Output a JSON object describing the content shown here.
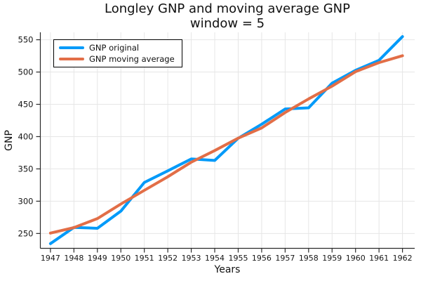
{
  "title": {
    "line1": "Longley GNP and moving average GNP",
    "line2": "window = 5"
  },
  "chart_data": {
    "type": "line",
    "title": "Longley GNP and moving average GNP",
    "subtitle": "window = 5",
    "xlabel": "Years",
    "ylabel": "GNP",
    "x": [
      1947,
      1948,
      1949,
      1950,
      1951,
      1952,
      1953,
      1954,
      1955,
      1956,
      1957,
      1958,
      1959,
      1960,
      1961,
      1962
    ],
    "xtick_labels": [
      "1947",
      "1948",
      "1949",
      "1950",
      "1951",
      "1952",
      "1953",
      "1954",
      "1955",
      "1956",
      "1957",
      "1958",
      "1959",
      "1960",
      "1961",
      "1962"
    ],
    "yticks": [
      250,
      300,
      350,
      400,
      450,
      500,
      550
    ],
    "xlim": [
      1946.57,
      1962.52
    ],
    "ylim": [
      227,
      561.5
    ],
    "grid": true,
    "legend_position": "top-left",
    "line_width": 4,
    "series": [
      {
        "name": "GNP original",
        "color": "#009AF9",
        "values": [
          234.289,
          259.426,
          258.054,
          284.599,
          328.975,
          346.999,
          365.385,
          363.112,
          397.469,
          419.18,
          442.769,
          444.546,
          482.704,
          502.601,
          518.173,
          554.894
        ]
      },
      {
        "name": "GNP moving average",
        "color": "#E26E47",
        "values": [
          250.59,
          259.09,
          273.07,
          295.61,
          316.8,
          337.81,
          360.39,
          378.43,
          397.58,
          413.42,
          437.33,
          458.36,
          478.16,
          500.58,
          514.59,
          525.22
        ]
      }
    ],
    "colors": {
      "grid": "#e6e6e6",
      "spine": "#2a2a2a",
      "tick_label": "#151515"
    }
  }
}
